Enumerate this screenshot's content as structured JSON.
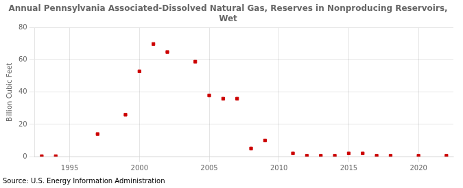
{
  "chart_data": {
    "type": "scatter",
    "title": "Annual Pennsylvania Associated-Dissolved Natural Gas, Reserves in Nonproducing Reservoirs,\nWet",
    "ylabel": "Billion Cubic Feet",
    "annotations": [
      "Source: U.S. Energy Information Administration"
    ],
    "x": [
      1993,
      1994,
      1997,
      1999,
      2000,
      2001,
      2002,
      2004,
      2005,
      2006,
      2007,
      2008,
      2009,
      2011,
      2012,
      2013,
      2014,
      2015,
      2016,
      2017,
      2018,
      2020,
      2022
    ],
    "values": [
      0.2,
      0.2,
      14,
      26,
      53,
      70,
      65,
      59,
      38,
      36,
      36,
      5,
      10,
      2,
      0.5,
      0.5,
      0.5,
      2,
      2,
      0.5,
      0.5,
      0.5,
      0.5
    ],
    "color": "#cc0000",
    "marker": "square",
    "xlim": [
      1992.5,
      2022.5
    ],
    "xticks": [
      1995,
      2000,
      2005,
      2010,
      2015,
      2020
    ],
    "ylim": [
      0,
      80
    ],
    "yticks": [
      0,
      20,
      40,
      60,
      80
    ],
    "grid": true
  }
}
